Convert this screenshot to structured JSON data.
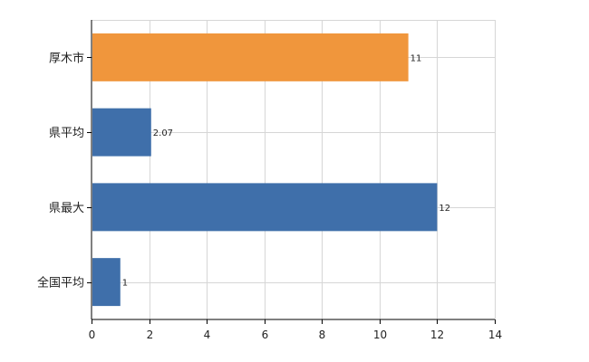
{
  "chart_data": {
    "type": "bar",
    "orientation": "horizontal",
    "categories": [
      "厚木市",
      "県平均",
      "県最大",
      "全国平均"
    ],
    "values": [
      11,
      2.07,
      12,
      1
    ],
    "value_labels": [
      "11",
      "2.07",
      "12",
      "1"
    ],
    "bar_colors": [
      "#F0963C",
      "#3F6FAA",
      "#3F6FAA",
      "#3F6FAA"
    ],
    "xlim": [
      0,
      14
    ],
    "xticks": [
      0,
      2,
      4,
      6,
      8,
      10,
      12,
      14
    ],
    "grid": true,
    "title": "",
    "xlabel": "",
    "ylabel": ""
  }
}
